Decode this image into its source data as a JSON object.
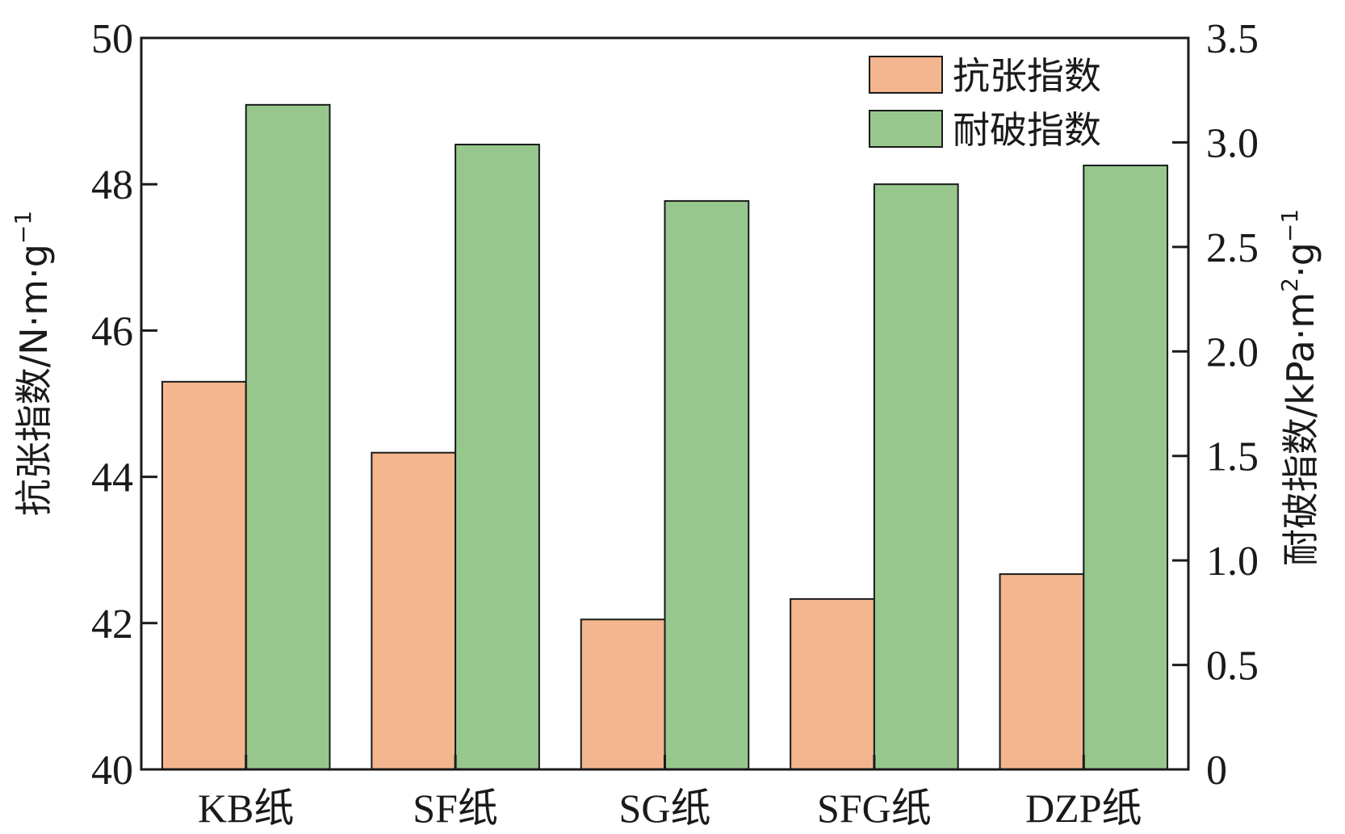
{
  "chart_data": {
    "type": "bar",
    "categories": [
      "KB纸",
      "SF纸",
      "SG纸",
      "SFG纸",
      "DZP纸"
    ],
    "series": [
      {
        "name": "抗张指数",
        "axis": "left",
        "color": "#f4b68e",
        "values": [
          45.3,
          44.33,
          42.05,
          42.33,
          42.67
        ]
      },
      {
        "name": "耐破指数",
        "axis": "right",
        "color": "#97c78d",
        "values": [
          3.18,
          2.99,
          2.72,
          2.8,
          2.89
        ]
      }
    ],
    "y_left": {
      "label": "抗张指数/N·m·g",
      "label_sup": "−1",
      "lim": [
        40,
        50
      ],
      "ticks": [
        "40",
        "42",
        "44",
        "46",
        "48",
        "50"
      ]
    },
    "y_right": {
      "label": "耐破指数/kPa·m",
      "label_sup1": "2",
      "label_mid": "·g",
      "label_sup2": "−1",
      "lim": [
        0,
        3.5
      ],
      "ticks": [
        "0",
        "0.5",
        "1.0",
        "1.5",
        "2.0",
        "2.5",
        "3.0",
        "3.5"
      ]
    },
    "legend_position": "top-right",
    "grid": false
  }
}
